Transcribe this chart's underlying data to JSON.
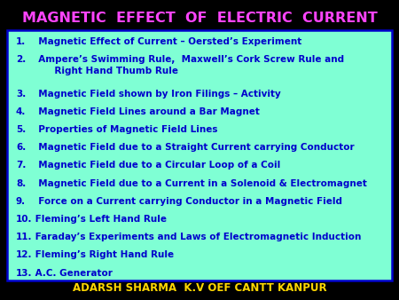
{
  "title": "MAGNETIC  EFFECT  OF  ELECTRIC  CURRENT",
  "title_color": "#FF44FF",
  "bg_color": "#000000",
  "box_bg_color": "#7FFFD4",
  "box_border_color": "#0000CC",
  "items_color": "#0000CC",
  "footer_color": "#FFD700",
  "footer_text": "ADARSH SHARMA  K.V OEF CANTT KANPUR",
  "items": [
    [
      "1.",
      "  Magnetic Effect of Current – Oersted’s Experiment"
    ],
    [
      "2.",
      "  Ampere’s Swimming Rule,  Maxwell’s Cork Screw Rule and\n       Right Hand Thumb Rule"
    ],
    [
      "3.",
      "  Magnetic Field shown by Iron Filings – Activity"
    ],
    [
      "4.",
      "  Magnetic Field Lines around a Bar Magnet"
    ],
    [
      "5.",
      "  Properties of Magnetic Field Lines"
    ],
    [
      "6.",
      "  Magnetic Field due to a Straight Current carrying Conductor"
    ],
    [
      "7.",
      "  Magnetic Field due to a Circular Loop of a Coil"
    ],
    [
      "8.",
      "  Magnetic Field due to a Current in a Solenoid & Electromagnet"
    ],
    [
      "9.",
      "  Force on a Current carrying Conductor in a Magnetic Field"
    ],
    [
      "10.",
      " Fleming’s Left Hand Rule"
    ],
    [
      "11.",
      " Faraday’s Experiments and Laws of Electromagnetic Induction"
    ],
    [
      "12.",
      " Fleming’s Right Hand Rule"
    ],
    [
      "13.",
      " A.C. Generator"
    ]
  ],
  "item_fontsize": 7.5,
  "title_fontsize": 11.5,
  "footer_fontsize": 8.5
}
